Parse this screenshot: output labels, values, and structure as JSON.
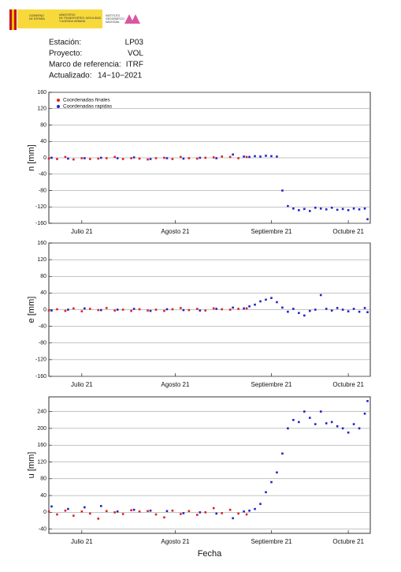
{
  "header": {
    "gov_line1": "GOBIERNO",
    "gov_line2": "DE ESPAÑA",
    "ministry_line1": "MINISTERIO",
    "ministry_line2": "DE TRANSPORTES, MOVILIDAD",
    "ministry_line3": "Y AGENDA URBANA",
    "ign_line1": "INSTITUTO",
    "ign_line2": "GEOGRÁFICO",
    "ign_line3": "NACIONAL",
    "station_label": "Estación:",
    "station": "LP03",
    "project_label": "Proyecto:",
    "project": "VOL",
    "frame_label": "Marco de referencia:",
    "frame": "ITRF",
    "updated_label": "Actualizado:",
    "updated": "14−10−2021"
  },
  "chart_data": [
    {
      "type": "scatter",
      "ylabel": "n [mm]",
      "legend": "upper left",
      "grid": true,
      "xlim": [
        0,
        117
      ],
      "xticks": [
        {
          "value": 12,
          "label": "Julio 21"
        },
        {
          "value": 46,
          "label": "Agosto 21"
        },
        {
          "value": 81,
          "label": "Septiembre 21"
        },
        {
          "value": 109,
          "label": "Octubre 21"
        }
      ],
      "ylim": [
        -160,
        160
      ],
      "yticks": [
        -160,
        -120,
        -80,
        -40,
        0,
        40,
        80,
        120,
        160
      ],
      "series": [
        {
          "name": "Coordenadas finales",
          "color": "#dd2222",
          "x": [
            0,
            3,
            6,
            9,
            12,
            15,
            18,
            21,
            24,
            27,
            30,
            33,
            36,
            39,
            42,
            45,
            48,
            51,
            54,
            57,
            60,
            63,
            66,
            69,
            72
          ],
          "values": [
            -2,
            -3,
            2,
            -4,
            -1,
            -3,
            -2,
            -1,
            2,
            -3,
            -1,
            -2,
            -4,
            -1,
            0,
            -3,
            2,
            -1,
            -2,
            0,
            1,
            3,
            2,
            -1,
            2
          ]
        },
        {
          "name": "Coordenadas rapidas",
          "color": "#2222cc",
          "x": [
            1,
            7,
            13,
            19,
            25,
            31,
            37,
            43,
            49,
            55,
            61,
            67,
            71,
            73,
            75,
            77,
            79,
            81,
            83,
            85,
            87,
            89,
            91,
            93,
            95,
            97,
            99,
            101,
            103,
            105,
            107,
            109,
            111,
            113,
            115,
            116
          ],
          "values": [
            0,
            -2,
            -1,
            0,
            -1,
            1,
            -3,
            -1,
            -2,
            0,
            -1,
            8,
            3,
            2,
            4,
            3,
            5,
            4,
            3,
            -80,
            -118,
            -124,
            -128,
            -125,
            -130,
            -122,
            -124,
            -126,
            -122,
            -127,
            -125,
            -128,
            -124,
            -126,
            -124,
            -150
          ]
        }
      ]
    },
    {
      "type": "scatter",
      "ylabel": "e [mm]",
      "grid": true,
      "xlim": [
        0,
        117
      ],
      "xticks": [
        {
          "value": 12,
          "label": "Julio 21"
        },
        {
          "value": 46,
          "label": "Agosto 21"
        },
        {
          "value": 81,
          "label": "Septiembre 21"
        },
        {
          "value": 109,
          "label": "Octubre 21"
        }
      ],
      "ylim": [
        -160,
        160
      ],
      "yticks": [
        -160,
        -120,
        -80,
        -40,
        0,
        40,
        80,
        120,
        160
      ],
      "series": [
        {
          "color": "#dd2222",
          "x": [
            0,
            3,
            6,
            9,
            12,
            15,
            18,
            21,
            24,
            27,
            30,
            33,
            36,
            39,
            42,
            45,
            48,
            51,
            54,
            57,
            60,
            63,
            66,
            69,
            72
          ],
          "values": [
            -2,
            1,
            -3,
            3,
            -4,
            2,
            -1,
            4,
            -2,
            0,
            -3,
            1,
            -2,
            0,
            -3,
            1,
            4,
            -1,
            2,
            -2,
            3,
            1,
            0,
            2,
            3
          ]
        },
        {
          "color": "#2222cc",
          "x": [
            1,
            7,
            13,
            19,
            25,
            31,
            37,
            43,
            49,
            55,
            61,
            67,
            71,
            73,
            75,
            77,
            79,
            81,
            83,
            85,
            87,
            89,
            91,
            93,
            95,
            97,
            99,
            101,
            103,
            105,
            107,
            109,
            111,
            113,
            115,
            116
          ],
          "values": [
            -2,
            0,
            3,
            -1,
            0,
            2,
            -3,
            1,
            -1,
            -2,
            2,
            5,
            3,
            8,
            12,
            20,
            24,
            28,
            18,
            5,
            -5,
            2,
            -8,
            -14,
            -3,
            0,
            35,
            2,
            -2,
            4,
            0,
            -4,
            2,
            -5,
            4,
            -6
          ]
        }
      ]
    },
    {
      "type": "scatter",
      "ylabel": "u [mm]",
      "xlabel": "Fecha",
      "grid": true,
      "xlim": [
        0,
        117
      ],
      "xticks": [
        {
          "value": 12,
          "label": "Julio 21"
        },
        {
          "value": 46,
          "label": "Agosto 21"
        },
        {
          "value": 81,
          "label": "Septiembre 21"
        },
        {
          "value": 109,
          "label": "Octubre 21"
        }
      ],
      "ylim": [
        -50,
        275
      ],
      "yticks": [
        -40,
        0,
        40,
        80,
        120,
        160,
        200,
        240
      ],
      "series": [
        {
          "color": "#dd2222",
          "x": [
            0,
            3,
            6,
            9,
            12,
            15,
            18,
            21,
            24,
            27,
            30,
            33,
            36,
            39,
            42,
            45,
            48,
            51,
            54,
            57,
            60,
            63,
            66,
            69,
            72
          ],
          "values": [
            2,
            -5,
            4,
            -8,
            2,
            -3,
            -15,
            3,
            0,
            -4,
            5,
            2,
            3,
            -5,
            -12,
            4,
            -4,
            3,
            -6,
            0,
            10,
            -2,
            6,
            -3,
            -5
          ]
        },
        {
          "color": "#2222cc",
          "x": [
            1,
            7,
            13,
            19,
            25,
            31,
            37,
            43,
            49,
            55,
            61,
            67,
            71,
            73,
            75,
            77,
            79,
            81,
            83,
            85,
            87,
            89,
            91,
            93,
            95,
            97,
            99,
            101,
            103,
            105,
            107,
            109,
            111,
            113,
            115,
            116
          ],
          "values": [
            14,
            8,
            12,
            15,
            2,
            6,
            4,
            3,
            -2,
            0,
            -3,
            -14,
            2,
            4,
            8,
            20,
            48,
            72,
            95,
            140,
            200,
            220,
            215,
            240,
            225,
            210,
            240,
            212,
            215,
            205,
            200,
            190,
            210,
            200,
            235,
            265
          ]
        }
      ]
    }
  ]
}
